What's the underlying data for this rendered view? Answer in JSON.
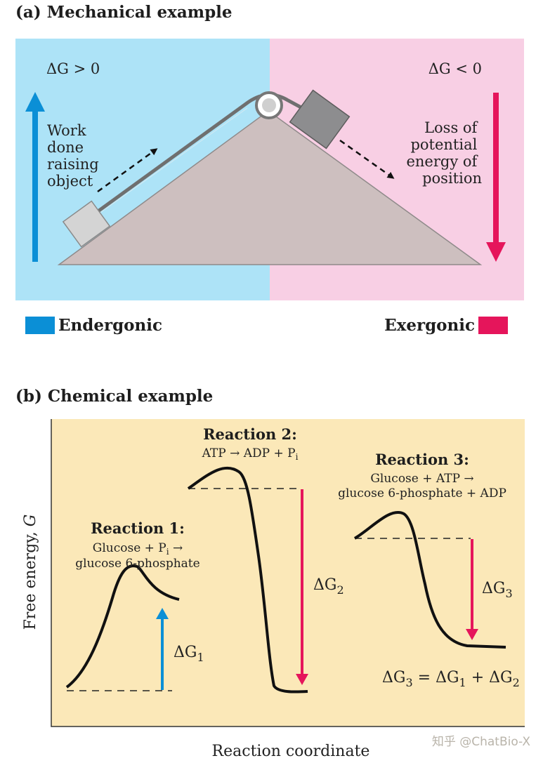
{
  "panel_a": {
    "title": "(a) Mechanical example",
    "left_delta_g": "ΔG > 0",
    "right_delta_g": "ΔG < 0",
    "left_caption": [
      "Work",
      "done",
      "raising",
      "object"
    ],
    "right_caption": [
      "Loss of",
      "potential",
      "energy of",
      "position"
    ],
    "legend_left": "Endergonic",
    "legend_right": "Exergonic",
    "colors": {
      "endergonic_bg": "#ade3f7",
      "exergonic_bg": "#f8cfe4",
      "endergonic_accent": "#0b8fd6",
      "exergonic_accent": "#e5155b",
      "ramp": "#cdbfbf"
    }
  },
  "panel_b": {
    "title": "(b) Chemical example",
    "ylabel": "Free energy, G",
    "xlabel": "Reaction coordinate",
    "reaction1": {
      "title": "Reaction 1:",
      "line1": "Glucose + Pi →",
      "line2": "glucose 6-phosphate",
      "delta": "ΔG1"
    },
    "reaction2": {
      "title": "Reaction 2:",
      "line1": "ATP → ADP + Pi",
      "delta": "ΔG2"
    },
    "reaction3": {
      "title": "Reaction 3:",
      "line1": "Glucose + ATP →",
      "line2": "glucose 6-phosphate + ADP",
      "delta": "ΔG3",
      "equation": "ΔG3 = ΔG1 + ΔG2"
    },
    "colors": {
      "background": "#fbe8b8",
      "up_arrow": "#0b8fd6",
      "down_arrow": "#e5155b"
    }
  },
  "watermark": "知乎 @ChatBio-X"
}
